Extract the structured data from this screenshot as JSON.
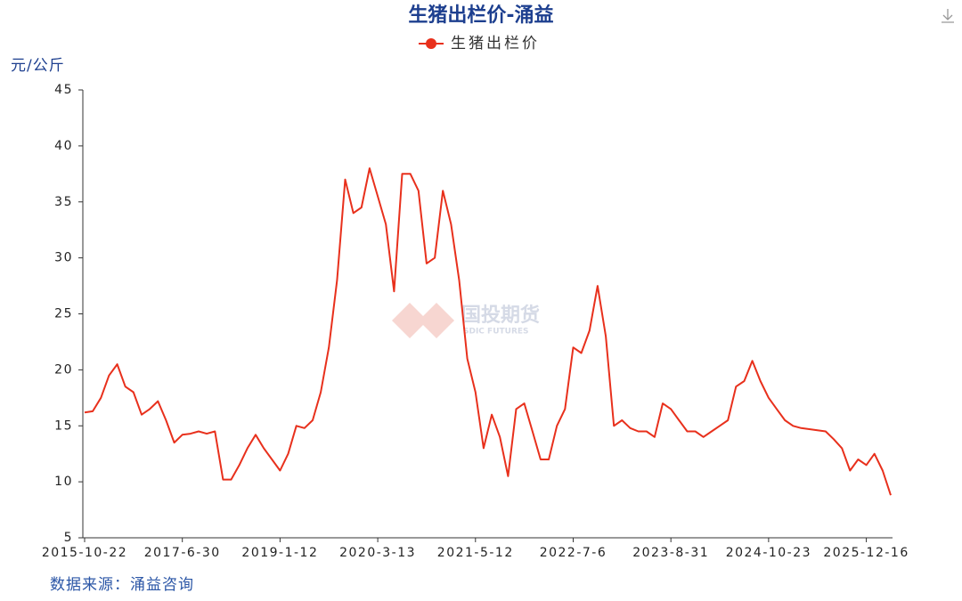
{
  "chart_data": {
    "type": "line",
    "title": "生猪出栏价-涌益",
    "y_label": "元/公斤",
    "source": "数据来源：涌益咨询",
    "watermark": {
      "text": "国投期货",
      "subtext": "SDIC FUTURES"
    },
    "categories": [
      "2015-10-22",
      null,
      null,
      null,
      null,
      null,
      null,
      null,
      null,
      null,
      null,
      null,
      "2017-6-30",
      null,
      null,
      null,
      null,
      null,
      null,
      null,
      null,
      null,
      null,
      null,
      "2019-1-12",
      null,
      null,
      null,
      null,
      null,
      null,
      null,
      null,
      null,
      null,
      null,
      "2020-3-13",
      null,
      null,
      null,
      null,
      null,
      null,
      null,
      null,
      null,
      null,
      null,
      "2021-5-12",
      null,
      null,
      null,
      null,
      null,
      null,
      null,
      null,
      null,
      null,
      null,
      "2022-7-6",
      null,
      null,
      null,
      null,
      null,
      null,
      null,
      null,
      null,
      null,
      null,
      "2023-8-31",
      null,
      null,
      null,
      null,
      null,
      null,
      null,
      null,
      null,
      null,
      null,
      "2024-10-23",
      null,
      null,
      null,
      null,
      null,
      null,
      null,
      null,
      null,
      null,
      null,
      "2025-12-16",
      null,
      null,
      null
    ],
    "series": [
      {
        "name": "生猪出栏价",
        "color": "#e8301c",
        "values": [
          16.2,
          16.3,
          17.5,
          19.5,
          20.5,
          18.5,
          18,
          16,
          16.5,
          17.2,
          15.5,
          13.5,
          14.2,
          14.3,
          14.5,
          14.3,
          14.5,
          10.2,
          10.2,
          11.5,
          13,
          14.2,
          13,
          12,
          11,
          12.5,
          15,
          14.8,
          15.5,
          18,
          22,
          28,
          37,
          34,
          34.5,
          38,
          35.5,
          33,
          27,
          37.5,
          37.5,
          36,
          29.5,
          30,
          36,
          33,
          28,
          21,
          18,
          13,
          16,
          14,
          10.5,
          16.5,
          17,
          14.5,
          12,
          12,
          15,
          16.5,
          22,
          21.5,
          23.5,
          27.5,
          23,
          15,
          15.5,
          14.8,
          14.5,
          14.5,
          14,
          17,
          16.5,
          15.5,
          14.5,
          14.5,
          14,
          14.5,
          15,
          15.5,
          18.5,
          19,
          20.8,
          19,
          17.5,
          16.5,
          15.5,
          15,
          14.8,
          14.7,
          14.6,
          14.5,
          13.8,
          13,
          11,
          12,
          11.5,
          12.5,
          11,
          8.8
        ]
      }
    ],
    "ylim": [
      5,
      45
    ],
    "yticks": [
      5,
      10,
      15,
      20,
      25,
      30,
      35,
      40,
      45
    ],
    "grid": false
  }
}
